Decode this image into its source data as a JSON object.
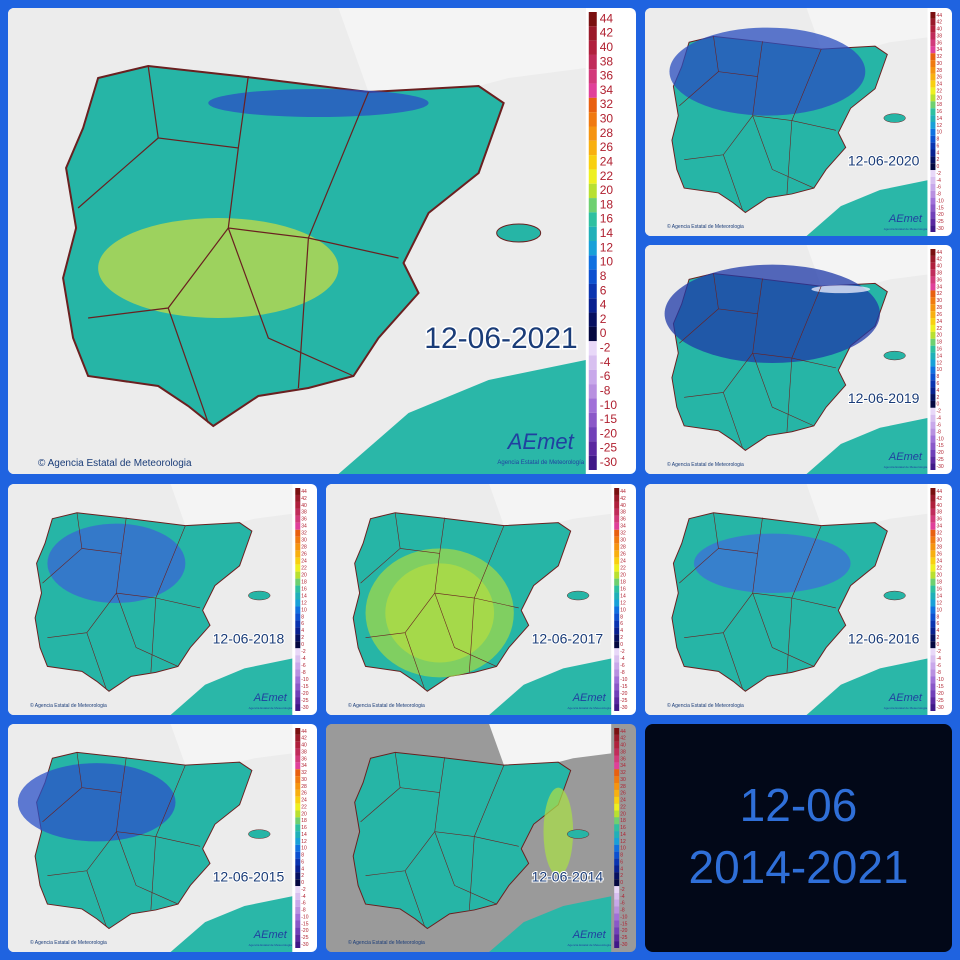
{
  "panels": [
    {
      "date": "12-06-2021"
    },
    {
      "date": "12-06-2020"
    },
    {
      "date": "12-06-2019"
    },
    {
      "date": "12-06-2018"
    },
    {
      "date": "12-06-2017"
    },
    {
      "date": "12-06-2016"
    },
    {
      "date": "12-06-2015"
    },
    {
      "date": "12-06-2014"
    }
  ],
  "scale": [
    "44",
    "42",
    "40",
    "38",
    "36",
    "34",
    "32",
    "30",
    "28",
    "26",
    "24",
    "22",
    "20",
    "18",
    "16",
    "14",
    "12",
    "10",
    "8",
    "6",
    "4",
    "2",
    "0",
    "-2",
    "-4",
    "-6",
    "-8",
    "-10",
    "-15",
    "-20",
    "-25",
    "-30"
  ],
  "copyright": "© Agencia Estatal de Meteorologia",
  "logo": {
    "name": "AEmet",
    "subtitle": "Agencia Estatal de Meteorología"
  },
  "summary": {
    "day": "12-06",
    "years": "2014-2021"
  }
}
